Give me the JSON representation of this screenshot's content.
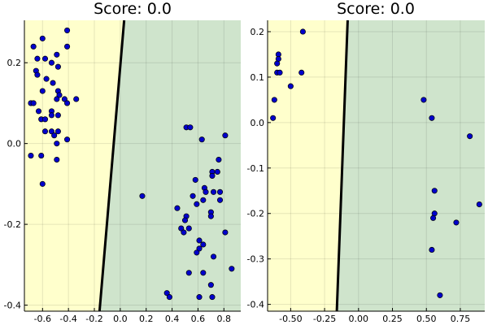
{
  "chart_data": [
    {
      "type": "scatter",
      "title": "Score: 0.0",
      "xlabel": "",
      "ylabel": "",
      "xlim": [
        -0.74,
        0.93
      ],
      "ylim": [
        -0.415,
        0.305
      ],
      "xticks": [
        -0.6,
        -0.4,
        -0.2,
        0.0,
        0.2,
        0.4,
        0.6,
        0.8
      ],
      "xtick_labels": [
        "-0.6",
        "-0.4",
        "-0.2",
        "0.0",
        "0.2",
        "0.4",
        "0.6",
        "0.8"
      ],
      "yticks": [
        -0.4,
        -0.2,
        0.0,
        0.2
      ],
      "ytick_labels": [
        "-0.4",
        "-0.2",
        "0.0",
        "0.2"
      ],
      "grid": true,
      "legend": "none",
      "regions": [
        {
          "class": "left",
          "color": "#ffffcc"
        },
        {
          "class": "right",
          "color": "#cfe4cc"
        }
      ],
      "boundary": {
        "color": "#000000",
        "points": [
          [
            0.03,
            0.305
          ],
          [
            -0.16,
            -0.415
          ]
        ]
      },
      "marker_color": "#0000cc",
      "marker_edge_color": "#000000",
      "points": [
        [
          -0.6,
          0.26
        ],
        [
          -0.67,
          0.24
        ],
        [
          -0.41,
          0.28
        ],
        [
          -0.41,
          0.24
        ],
        [
          -0.49,
          0.22
        ],
        [
          -0.58,
          0.21
        ],
        [
          -0.64,
          0.21
        ],
        [
          -0.53,
          0.2
        ],
        [
          -0.48,
          0.19
        ],
        [
          -0.65,
          0.18
        ],
        [
          -0.64,
          0.17
        ],
        [
          -0.57,
          0.16
        ],
        [
          -0.52,
          0.15
        ],
        [
          -0.6,
          0.13
        ],
        [
          -0.48,
          0.13
        ],
        [
          -0.47,
          0.12
        ],
        [
          -0.43,
          0.11
        ],
        [
          -0.34,
          0.11
        ],
        [
          -0.49,
          0.11
        ],
        [
          -0.41,
          0.1
        ],
        [
          -0.69,
          0.1
        ],
        [
          -0.67,
          0.1
        ],
        [
          -0.63,
          0.08
        ],
        [
          -0.53,
          0.08
        ],
        [
          -0.61,
          0.06
        ],
        [
          -0.58,
          0.06
        ],
        [
          -0.53,
          0.07
        ],
        [
          -0.48,
          0.07
        ],
        [
          -0.58,
          0.03
        ],
        [
          -0.48,
          0.03
        ],
        [
          -0.53,
          0.03
        ],
        [
          -0.51,
          0.02
        ],
        [
          -0.41,
          0.01
        ],
        [
          -0.49,
          0.0
        ],
        [
          -0.69,
          -0.03
        ],
        [
          -0.61,
          -0.03
        ],
        [
          -0.49,
          -0.04
        ],
        [
          -0.6,
          -0.1
        ],
        [
          0.17,
          -0.13
        ],
        [
          0.51,
          0.04
        ],
        [
          0.54,
          0.04
        ],
        [
          0.81,
          0.02
        ],
        [
          0.63,
          0.01
        ],
        [
          0.76,
          -0.04
        ],
        [
          0.75,
          -0.07
        ],
        [
          0.71,
          -0.07
        ],
        [
          0.71,
          -0.08
        ],
        [
          0.58,
          -0.09
        ],
        [
          0.65,
          -0.11
        ],
        [
          0.72,
          -0.12
        ],
        [
          0.66,
          -0.12
        ],
        [
          0.77,
          -0.12
        ],
        [
          0.56,
          -0.13
        ],
        [
          0.64,
          -0.14
        ],
        [
          0.77,
          -0.14
        ],
        [
          0.59,
          -0.15
        ],
        [
          0.44,
          -0.16
        ],
        [
          0.7,
          -0.17
        ],
        [
          0.7,
          -0.18
        ],
        [
          0.51,
          -0.18
        ],
        [
          0.5,
          -0.19
        ],
        [
          0.47,
          -0.21
        ],
        [
          0.49,
          -0.22
        ],
        [
          0.53,
          -0.21
        ],
        [
          0.61,
          -0.24
        ],
        [
          0.64,
          -0.25
        ],
        [
          0.61,
          -0.26
        ],
        [
          0.81,
          -0.22
        ],
        [
          0.59,
          -0.27
        ],
        [
          0.72,
          -0.28
        ],
        [
          0.53,
          -0.32
        ],
        [
          0.64,
          -0.32
        ],
        [
          0.86,
          -0.31
        ],
        [
          0.36,
          -0.37
        ],
        [
          0.38,
          -0.38
        ],
        [
          0.7,
          -0.35
        ],
        [
          0.61,
          -0.38
        ],
        [
          0.71,
          -0.38
        ]
      ]
    },
    {
      "type": "scatter",
      "title": "Score: 0.0",
      "xlabel": "",
      "ylabel": "",
      "xlim": [
        -0.67,
        0.93
      ],
      "ylim": [
        -0.415,
        0.225
      ],
      "xticks": [
        -0.5,
        -0.25,
        0.0,
        0.25,
        0.5,
        0.75
      ],
      "xtick_labels": [
        "-0.50",
        "-0.25",
        "0.00",
        "0.25",
        "0.50",
        "0.75"
      ],
      "yticks": [
        -0.4,
        -0.3,
        -0.2,
        -0.1,
        0.0,
        0.1,
        0.2
      ],
      "ytick_labels": [
        "-0.4",
        "-0.3",
        "-0.2",
        "-0.1",
        "0.0",
        "0.1",
        "0.2"
      ],
      "grid": true,
      "legend": "none",
      "regions": [
        {
          "class": "left",
          "color": "#ffffcc"
        },
        {
          "class": "right",
          "color": "#cfe4cc"
        }
      ],
      "boundary": {
        "color": "#000000",
        "points": [
          [
            -0.08,
            0.225
          ],
          [
            -0.16,
            -0.415
          ]
        ]
      },
      "marker_color": "#0000cc",
      "marker_edge_color": "#000000",
      "points": [
        [
          -0.41,
          0.2
        ],
        [
          -0.59,
          0.15
        ],
        [
          -0.59,
          0.14
        ],
        [
          -0.6,
          0.13
        ],
        [
          -0.6,
          0.11
        ],
        [
          -0.58,
          0.11
        ],
        [
          -0.42,
          0.11
        ],
        [
          -0.5,
          0.08
        ],
        [
          -0.62,
          0.05
        ],
        [
          -0.63,
          0.01
        ],
        [
          0.48,
          0.05
        ],
        [
          0.54,
          0.01
        ],
        [
          0.82,
          -0.03
        ],
        [
          0.56,
          -0.15
        ],
        [
          0.89,
          -0.18
        ],
        [
          0.56,
          -0.2
        ],
        [
          0.55,
          -0.21
        ],
        [
          0.72,
          -0.22
        ],
        [
          0.54,
          -0.28
        ],
        [
          0.6,
          -0.38
        ]
      ]
    }
  ]
}
